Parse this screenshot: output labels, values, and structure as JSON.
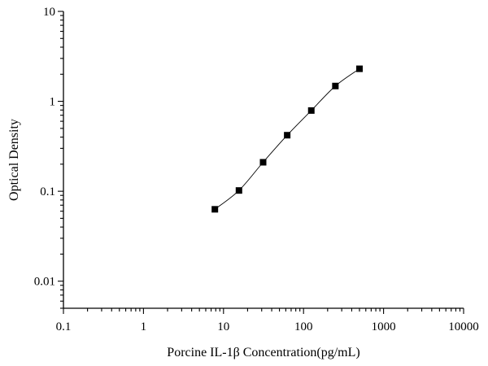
{
  "chart_data": {
    "type": "line",
    "xlabel": "Porcine IL-1β Concentration(pg/mL)",
    "ylabel": "Optical Density",
    "x_scale": "log",
    "y_scale": "log",
    "xlim": [
      0.1,
      10000
    ],
    "ylim": [
      0.005,
      10
    ],
    "x_ticks": [
      0.1,
      1,
      10,
      100,
      1000,
      10000
    ],
    "x_tick_labels": [
      "0.1",
      "1",
      "10",
      "100",
      "1000",
      "10000"
    ],
    "y_ticks": [
      0.01,
      0.1,
      1,
      10
    ],
    "y_tick_labels": [
      "0.01",
      "0.1",
      "1",
      "10"
    ],
    "grid": false,
    "legend": "none",
    "marker": "square",
    "series": [
      {
        "x": [
          7.8,
          15.6,
          31.25,
          62.5,
          125,
          250,
          500
        ],
        "y": [
          0.063,
          0.102,
          0.21,
          0.42,
          0.79,
          1.48,
          2.3
        ],
        "color": "#000000"
      }
    ]
  }
}
